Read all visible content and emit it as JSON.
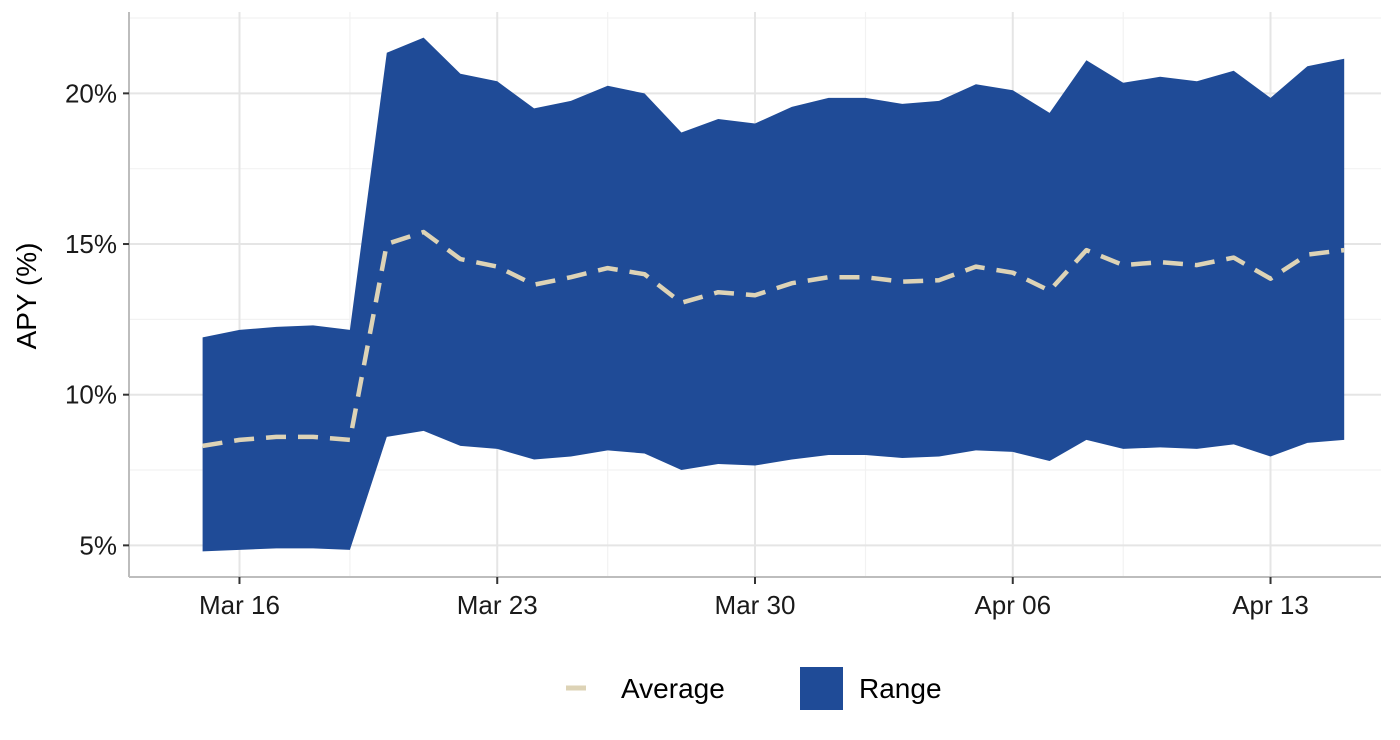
{
  "chart_data": {
    "type": "area",
    "ylabel": "APY (%)",
    "xlabel": "",
    "title": "",
    "x": [
      "2025-03-15",
      "2025-03-16",
      "2025-03-17",
      "2025-03-18",
      "2025-03-19",
      "2025-03-20",
      "2025-03-21",
      "2025-03-22",
      "2025-03-23",
      "2025-03-24",
      "2025-03-25",
      "2025-03-26",
      "2025-03-27",
      "2025-03-28",
      "2025-03-29",
      "2025-03-30",
      "2025-03-31",
      "2025-04-01",
      "2025-04-02",
      "2025-04-03",
      "2025-04-04",
      "2025-04-05",
      "2025-04-06",
      "2025-04-07",
      "2025-04-08",
      "2025-04-09",
      "2025-04-10",
      "2025-04-11",
      "2025-04-12",
      "2025-04-13",
      "2025-04-14",
      "2025-04-15"
    ],
    "series": [
      {
        "name": "Average",
        "kind": "line",
        "dash": true,
        "values": [
          8.3,
          8.5,
          8.6,
          8.6,
          8.5,
          15.0,
          15.4,
          14.5,
          14.25,
          13.65,
          13.9,
          14.2,
          14.0,
          13.05,
          13.4,
          13.3,
          13.7,
          13.9,
          13.9,
          13.75,
          13.8,
          14.25,
          14.05,
          13.45,
          14.8,
          14.3,
          14.4,
          14.3,
          14.55,
          13.85,
          14.65,
          14.8
        ]
      },
      {
        "name": "Range",
        "kind": "ribbon",
        "lower": [
          4.8,
          4.85,
          4.9,
          4.9,
          4.85,
          8.6,
          8.8,
          8.3,
          8.2,
          7.85,
          7.95,
          8.15,
          8.05,
          7.5,
          7.7,
          7.65,
          7.85,
          8.0,
          8.0,
          7.9,
          7.95,
          8.15,
          8.1,
          7.8,
          8.5,
          8.2,
          8.25,
          8.2,
          8.35,
          7.95,
          8.4,
          8.5
        ],
        "upper": [
          11.9,
          12.15,
          12.25,
          12.3,
          12.15,
          21.35,
          21.85,
          20.65,
          20.4,
          19.5,
          19.75,
          20.25,
          20.0,
          18.7,
          19.15,
          19.0,
          19.55,
          19.85,
          19.85,
          19.65,
          19.75,
          20.3,
          20.1,
          19.35,
          21.1,
          20.35,
          20.55,
          20.4,
          20.75,
          19.85,
          20.9,
          21.15
        ]
      }
    ],
    "ylim": [
      3.95,
      22.7
    ],
    "xlim": [
      "2025-03-13",
      "2025-04-16"
    ],
    "y_ticks": [
      5,
      10,
      15,
      20
    ],
    "y_tick_labels": [
      "5%",
      "10%",
      "15%",
      "20%"
    ],
    "x_ticks": [
      "2025-03-16",
      "2025-03-23",
      "2025-03-30",
      "2025-04-06",
      "2025-04-13"
    ],
    "x_tick_labels": [
      "Mar 16",
      "Mar 23",
      "Mar 30",
      "Apr 06",
      "Apr 13"
    ],
    "grid": true,
    "legend_position": "bottom",
    "legend": [
      {
        "label": "Average",
        "key": "dashed-line"
      },
      {
        "label": "Range",
        "key": "filled-box"
      }
    ],
    "colors": {
      "range_fill": "#1f4b97",
      "average_line": "#ddd3b6",
      "grid": "#e5e5e5",
      "axis": "#bdbdbd"
    }
  }
}
